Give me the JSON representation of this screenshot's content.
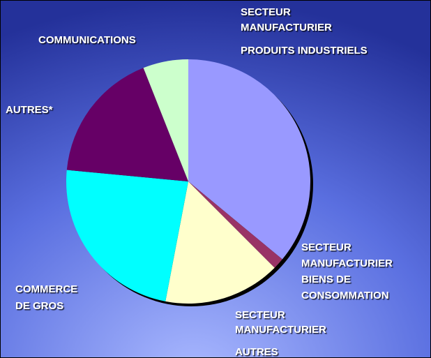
{
  "chart_data": {
    "type": "pie",
    "categories": [
      "SECTEUR\nMANUFACTURIER\nPRODUITS INDUSTRIELS",
      "SECTEUR\nMANUFACTURIER\nBIENS DE\nCONSOMMATION",
      "SECTEUR\nMANUFACTURIER\nAUTRES",
      "COMMERCE\nDE GROS",
      "AUTRES*",
      "COMMUNICATIONS"
    ],
    "values": [
      36,
      1.5,
      15.5,
      23.5,
      17.5,
      6
    ],
    "colors": [
      "#9999ff",
      "#993366",
      "#ffffcc",
      "#00ffff",
      "#660066",
      "#ccffcc"
    ]
  }
}
